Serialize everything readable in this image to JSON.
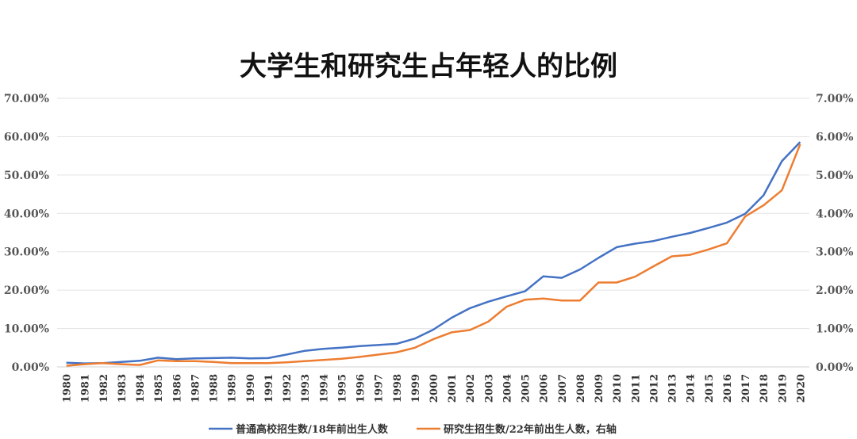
{
  "chart_data": {
    "type": "line",
    "title": "大学生和研究生占年轻人的比例",
    "x": [
      1980,
      1981,
      1982,
      1983,
      1984,
      1985,
      1986,
      1987,
      1988,
      1989,
      1990,
      1991,
      1992,
      1993,
      1994,
      1995,
      1996,
      1997,
      1998,
      1999,
      2000,
      2001,
      2002,
      2003,
      2004,
      2005,
      2006,
      2007,
      2008,
      2009,
      2010,
      2011,
      2012,
      2013,
      2014,
      2015,
      2016,
      2017,
      2018,
      2019,
      2020
    ],
    "left_axis": {
      "ylim": [
        0,
        70
      ],
      "ticks": [
        "0.00%",
        "10.00%",
        "20.00%",
        "30.00%",
        "40.00%",
        "50.00%",
        "60.00%",
        "70.00%"
      ]
    },
    "right_axis": {
      "ylim": [
        0,
        7
      ],
      "ticks": [
        "0.00%",
        "1.00%",
        "2.00%",
        "3.00%",
        "4.00%",
        "5.00%",
        "6.00%",
        "7.00%"
      ]
    },
    "grid": true,
    "legend_position": "bottom",
    "series": [
      {
        "name": "普通高校招生数/18年前出生人数",
        "axis": "left",
        "color": "#4472C4",
        "unit": "%",
        "values": [
          1.1,
          0.9,
          1.0,
          1.3,
          1.6,
          2.4,
          2.0,
          2.2,
          2.3,
          2.4,
          2.2,
          2.3,
          3.2,
          4.2,
          4.7,
          5.0,
          5.4,
          5.7,
          6.0,
          7.4,
          9.7,
          12.8,
          15.3,
          17.0,
          18.4,
          19.7,
          23.6,
          23.2,
          25.4,
          28.4,
          31.2,
          32.1,
          32.8,
          33.9,
          34.9,
          36.2,
          37.6,
          39.9,
          44.7,
          53.6,
          58.6
        ]
      },
      {
        "name": "研究生招生数/22年前出生人数，右轴",
        "axis": "right",
        "color": "#ED7D31",
        "unit": "%",
        "values": [
          0.03,
          0.07,
          0.1,
          0.07,
          0.05,
          0.17,
          0.15,
          0.15,
          0.13,
          0.1,
          0.1,
          0.1,
          0.12,
          0.15,
          0.18,
          0.21,
          0.26,
          0.32,
          0.38,
          0.5,
          0.72,
          0.9,
          0.96,
          1.18,
          1.57,
          1.75,
          1.78,
          1.73,
          1.73,
          2.2,
          2.2,
          2.35,
          2.62,
          2.88,
          2.92,
          3.06,
          3.22,
          3.92,
          4.21,
          4.6,
          5.8
        ]
      }
    ]
  }
}
